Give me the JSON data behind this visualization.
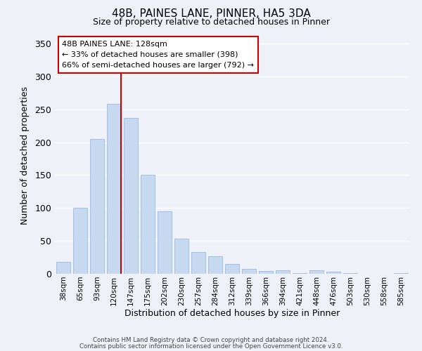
{
  "title": "48B, PAINES LANE, PINNER, HA5 3DA",
  "subtitle": "Size of property relative to detached houses in Pinner",
  "xlabel": "Distribution of detached houses by size in Pinner",
  "ylabel": "Number of detached properties",
  "bar_labels": [
    "38sqm",
    "65sqm",
    "93sqm",
    "120sqm",
    "147sqm",
    "175sqm",
    "202sqm",
    "230sqm",
    "257sqm",
    "284sqm",
    "312sqm",
    "339sqm",
    "366sqm",
    "394sqm",
    "421sqm",
    "448sqm",
    "476sqm",
    "503sqm",
    "530sqm",
    "558sqm",
    "585sqm"
  ],
  "bar_values": [
    18,
    100,
    205,
    258,
    237,
    150,
    95,
    53,
    33,
    27,
    15,
    8,
    4,
    5,
    1,
    5,
    3,
    1,
    0,
    0,
    1
  ],
  "bar_color": "#c6d9f0",
  "bar_edge_color": "#a0b8d8",
  "ylim": [
    0,
    360
  ],
  "yticks": [
    0,
    50,
    100,
    150,
    200,
    250,
    300,
    350
  ],
  "property_line_index": 3,
  "property_line_color": "#cc0000",
  "annotation_title": "48B PAINES LANE: 128sqm",
  "annotation_line1": "← 33% of detached houses are smaller (398)",
  "annotation_line2": "66% of semi-detached houses are larger (792) →",
  "annotation_box_color": "#ffffff",
  "annotation_box_edge": "#cc0000",
  "footer_line1": "Contains HM Land Registry data © Crown copyright and database right 2024.",
  "footer_line2": "Contains public sector information licensed under the Open Government Licence v3.0.",
  "background_color": "#eef2f8",
  "grid_color": "#ffffff",
  "title_fontsize": 11,
  "subtitle_fontsize": 9,
  "ylabel_fontsize": 9,
  "xlabel_fontsize": 9
}
